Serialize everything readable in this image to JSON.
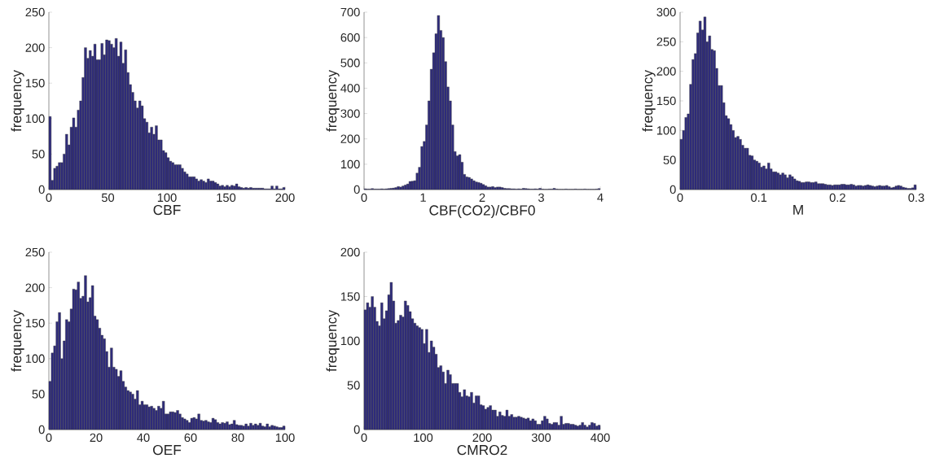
{
  "chart_data": [
    {
      "type": "histogram",
      "xlabel": "CBF",
      "ylabel": "frequency",
      "color": "#2e2b7c",
      "xlim": [
        0,
        200
      ],
      "ylim": [
        0,
        250
      ],
      "xticks": [
        0,
        50,
        100,
        150,
        200
      ],
      "yticks": [
        0,
        50,
        100,
        150,
        200,
        250
      ],
      "bins": [
        0,
        2,
        4,
        6,
        8,
        10,
        12,
        14,
        16,
        18,
        20,
        22,
        24,
        26,
        28,
        30,
        32,
        34,
        36,
        38,
        40,
        42,
        44,
        46,
        48,
        50,
        52,
        54,
        56,
        58,
        60,
        62,
        64,
        66,
        68,
        70,
        72,
        74,
        76,
        78,
        80,
        82,
        84,
        86,
        88,
        90,
        92,
        94,
        96,
        98,
        100,
        102,
        104,
        106,
        108,
        110,
        112,
        114,
        116,
        118,
        120,
        122,
        124,
        126,
        128,
        130,
        132,
        134,
        136,
        138,
        140,
        142,
        144,
        146,
        148,
        150,
        152,
        154,
        156,
        158,
        160,
        162,
        164,
        166,
        168,
        170,
        172,
        174,
        176,
        178,
        180,
        182,
        184,
        186,
        188,
        190,
        192,
        194,
        196,
        198,
        200
      ],
      "values": [
        103,
        13,
        30,
        33,
        38,
        38,
        50,
        78,
        63,
        88,
        101,
        88,
        112,
        125,
        158,
        200,
        185,
        196,
        188,
        205,
        183,
        183,
        206,
        190,
        211,
        210,
        205,
        200,
        213,
        188,
        208,
        178,
        197,
        165,
        148,
        137,
        125,
        115,
        125,
        118,
        100,
        95,
        80,
        88,
        78,
        90,
        70,
        70,
        55,
        52,
        45,
        40,
        38,
        35,
        35,
        35,
        30,
        25,
        22,
        18,
        18,
        18,
        15,
        12,
        14,
        12,
        10,
        15,
        12,
        12,
        10,
        8,
        5,
        6,
        4,
        6,
        4,
        6,
        5,
        8,
        4,
        3,
        2,
        3,
        2,
        3,
        2,
        2,
        2,
        2,
        2,
        1,
        1,
        1,
        5,
        1,
        5,
        1,
        1,
        3
      ]
    },
    {
      "type": "histogram",
      "xlabel": "CBF(CO2)/CBF0",
      "ylabel": "frequency",
      "color": "#2e2b7c",
      "xlim": [
        0,
        4
      ],
      "ylim": [
        0,
        700
      ],
      "xticks": [
        0,
        1,
        2,
        3,
        4
      ],
      "yticks": [
        0,
        100,
        200,
        300,
        400,
        500,
        600,
        700
      ],
      "bins": [
        0,
        0.04,
        0.08,
        0.12,
        0.16,
        0.2,
        0.24,
        0.28,
        0.32,
        0.36,
        0.4,
        0.44,
        0.48,
        0.52,
        0.56,
        0.6,
        0.64,
        0.68,
        0.72,
        0.76,
        0.8,
        0.84,
        0.88,
        0.92,
        0.96,
        1.0,
        1.04,
        1.08,
        1.12,
        1.16,
        1.2,
        1.24,
        1.28,
        1.32,
        1.36,
        1.4,
        1.44,
        1.48,
        1.52,
        1.56,
        1.6,
        1.64,
        1.68,
        1.72,
        1.76,
        1.8,
        1.84,
        1.88,
        1.92,
        1.96,
        2.0,
        2.04,
        2.08,
        2.12,
        2.16,
        2.2,
        2.24,
        2.28,
        2.32,
        2.36,
        2.4,
        2.44,
        2.48,
        2.52,
        2.56,
        2.6,
        2.64,
        2.68,
        2.72,
        2.76,
        2.8,
        2.84,
        2.88,
        2.92,
        2.96,
        3.0,
        3.04,
        3.08,
        3.12,
        3.16,
        3.2,
        3.24,
        3.28,
        3.32,
        3.36,
        3.4,
        3.44,
        3.48,
        3.52,
        3.56,
        3.6,
        3.64,
        3.68,
        3.72,
        3.76,
        3.8,
        3.84,
        3.88,
        3.92,
        3.96,
        4.0
      ],
      "values": [
        3,
        2,
        2,
        4,
        2,
        2,
        2,
        3,
        2,
        3,
        4,
        5,
        6,
        8,
        12,
        10,
        14,
        18,
        22,
        32,
        33,
        35,
        65,
        88,
        170,
        190,
        255,
        350,
        475,
        540,
        615,
        687,
        628,
        600,
        505,
        405,
        350,
        255,
        150,
        133,
        138,
        108,
        60,
        50,
        48,
        42,
        35,
        30,
        28,
        25,
        20,
        15,
        10,
        10,
        12,
        8,
        10,
        10,
        8,
        5,
        4,
        4,
        3,
        3,
        2,
        3,
        2,
        5,
        4,
        3,
        2,
        2,
        3,
        2,
        5,
        2,
        1,
        1,
        2,
        2,
        5,
        2,
        1,
        1,
        1,
        2,
        1,
        1,
        1,
        2,
        1,
        1,
        1,
        2,
        1,
        1,
        1,
        1,
        2,
        4
      ]
    },
    {
      "type": "histogram",
      "xlabel": "M",
      "ylabel": "frequency",
      "color": "#2e2b7c",
      "xlim": [
        0,
        0.3
      ],
      "ylim": [
        0,
        300
      ],
      "xticks": [
        0,
        0.1,
        0.2,
        0.3
      ],
      "yticks": [
        0,
        50,
        100,
        150,
        200,
        250,
        300
      ],
      "bins": [
        0,
        0.003,
        0.006,
        0.009,
        0.012,
        0.015,
        0.018,
        0.021,
        0.024,
        0.027,
        0.03,
        0.033,
        0.036,
        0.039,
        0.042,
        0.045,
        0.048,
        0.051,
        0.054,
        0.057,
        0.06,
        0.063,
        0.066,
        0.069,
        0.072,
        0.075,
        0.078,
        0.081,
        0.084,
        0.087,
        0.09,
        0.093,
        0.096,
        0.099,
        0.102,
        0.105,
        0.108,
        0.111,
        0.114,
        0.117,
        0.12,
        0.123,
        0.126,
        0.129,
        0.132,
        0.135,
        0.138,
        0.141,
        0.144,
        0.147,
        0.15,
        0.153,
        0.156,
        0.159,
        0.162,
        0.165,
        0.168,
        0.171,
        0.174,
        0.177,
        0.18,
        0.183,
        0.186,
        0.189,
        0.192,
        0.195,
        0.198,
        0.201,
        0.204,
        0.207,
        0.21,
        0.213,
        0.216,
        0.219,
        0.222,
        0.225,
        0.228,
        0.231,
        0.234,
        0.237,
        0.24,
        0.243,
        0.246,
        0.249,
        0.252,
        0.255,
        0.258,
        0.261,
        0.264,
        0.267,
        0.27,
        0.273,
        0.276,
        0.279,
        0.282,
        0.285,
        0.288,
        0.291,
        0.294,
        0.297,
        0.3
      ],
      "values": [
        85,
        100,
        122,
        128,
        178,
        220,
        230,
        265,
        285,
        270,
        292,
        250,
        260,
        237,
        235,
        205,
        176,
        176,
        147,
        125,
        120,
        110,
        100,
        88,
        90,
        85,
        75,
        70,
        70,
        58,
        57,
        50,
        48,
        45,
        38,
        40,
        35,
        45,
        35,
        30,
        30,
        28,
        25,
        28,
        25,
        20,
        25,
        22,
        18,
        15,
        14,
        12,
        12,
        13,
        13,
        12,
        12,
        13,
        10,
        10,
        10,
        9,
        8,
        8,
        7,
        8,
        8,
        8,
        9,
        9,
        8,
        8,
        9,
        8,
        6,
        7,
        7,
        6,
        7,
        8,
        7,
        6,
        5,
        6,
        7,
        6,
        6,
        7,
        5,
        3,
        4,
        6,
        7,
        6,
        4,
        3,
        2,
        2,
        3,
        8
      ]
    },
    {
      "type": "histogram",
      "xlabel": "OEF",
      "ylabel": "frequency",
      "color": "#2e2b7c",
      "xlim": [
        0,
        100
      ],
      "ylim": [
        0,
        250
      ],
      "xticks": [
        0,
        20,
        40,
        60,
        80,
        100
      ],
      "yticks": [
        0,
        50,
        100,
        150,
        200,
        250
      ],
      "bins": [
        0,
        1,
        2,
        3,
        4,
        5,
        6,
        7,
        8,
        9,
        10,
        11,
        12,
        13,
        14,
        15,
        16,
        17,
        18,
        19,
        20,
        21,
        22,
        23,
        24,
        25,
        26,
        27,
        28,
        29,
        30,
        31,
        32,
        33,
        34,
        35,
        36,
        37,
        38,
        39,
        40,
        41,
        42,
        43,
        44,
        45,
        46,
        47,
        48,
        49,
        50,
        51,
        52,
        53,
        54,
        55,
        56,
        57,
        58,
        59,
        60,
        61,
        62,
        63,
        64,
        65,
        66,
        67,
        68,
        69,
        70,
        71,
        72,
        73,
        74,
        75,
        76,
        77,
        78,
        79,
        80,
        81,
        82,
        83,
        84,
        85,
        86,
        87,
        88,
        89,
        90,
        91,
        92,
        93,
        94,
        95,
        96,
        97,
        98,
        99,
        100
      ],
      "values": [
        68,
        108,
        118,
        152,
        165,
        100,
        125,
        155,
        152,
        170,
        198,
        197,
        208,
        185,
        188,
        217,
        180,
        186,
        203,
        160,
        155,
        143,
        133,
        128,
        110,
        88,
        115,
        88,
        85,
        75,
        83,
        68,
        60,
        55,
        53,
        50,
        43,
        55,
        35,
        40,
        35,
        35,
        32,
        33,
        30,
        27,
        33,
        30,
        40,
        22,
        22,
        25,
        25,
        24,
        27,
        22,
        17,
        15,
        13,
        10,
        16,
        17,
        15,
        22,
        13,
        12,
        13,
        11,
        10,
        16,
        14,
        10,
        8,
        10,
        9,
        11,
        7,
        8,
        13,
        7,
        6,
        6,
        5,
        8,
        5,
        9,
        6,
        8,
        6,
        9,
        5,
        4,
        8,
        4,
        6,
        5,
        4,
        3,
        3,
        5
      ]
    },
    {
      "type": "histogram",
      "xlabel": "CMRO2",
      "ylabel": "frequency",
      "color": "#2e2b7c",
      "xlim": [
        0,
        400
      ],
      "ylim": [
        0,
        200
      ],
      "xticks": [
        0,
        100,
        200,
        300,
        400
      ],
      "yticks": [
        0,
        50,
        100,
        150,
        200
      ],
      "bins": [
        0,
        4,
        8,
        12,
        16,
        20,
        24,
        28,
        32,
        36,
        40,
        44,
        48,
        52,
        56,
        60,
        64,
        68,
        72,
        76,
        80,
        84,
        88,
        92,
        96,
        100,
        104,
        108,
        112,
        116,
        120,
        124,
        128,
        132,
        136,
        140,
        144,
        148,
        152,
        156,
        160,
        164,
        168,
        172,
        176,
        180,
        184,
        188,
        192,
        196,
        200,
        204,
        208,
        212,
        216,
        220,
        224,
        228,
        232,
        236,
        240,
        244,
        248,
        252,
        256,
        260,
        264,
        268,
        272,
        276,
        280,
        284,
        288,
        292,
        296,
        300,
        304,
        308,
        312,
        316,
        320,
        324,
        328,
        332,
        336,
        340,
        344,
        348,
        352,
        356,
        360,
        364,
        368,
        372,
        376,
        380,
        384,
        388,
        392,
        396,
        400
      ],
      "values": [
        135,
        143,
        138,
        150,
        138,
        122,
        117,
        143,
        125,
        134,
        152,
        166,
        145,
        120,
        123,
        129,
        127,
        145,
        140,
        133,
        125,
        120,
        117,
        115,
        113,
        97,
        113,
        87,
        100,
        93,
        85,
        70,
        72,
        65,
        52,
        67,
        62,
        52,
        52,
        52,
        42,
        37,
        45,
        38,
        37,
        42,
        30,
        38,
        38,
        28,
        27,
        23,
        25,
        27,
        22,
        22,
        15,
        20,
        16,
        15,
        22,
        15,
        17,
        14,
        14,
        15,
        14,
        13,
        12,
        13,
        10,
        12,
        10,
        6,
        6,
        10,
        15,
        12,
        7,
        6,
        8,
        8,
        5,
        15,
        6,
        7,
        7,
        6,
        6,
        5,
        4,
        5,
        8,
        5,
        3,
        5,
        8,
        7,
        4,
        5
      ]
    }
  ]
}
